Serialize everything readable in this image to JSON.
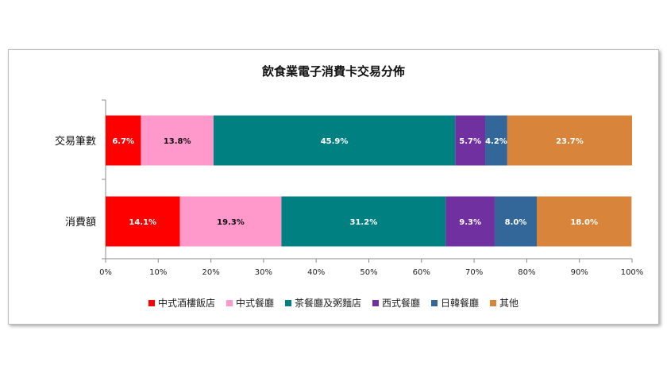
{
  "chart_data": {
    "type": "bar",
    "orientation": "horizontal",
    "stacked": true,
    "title": "飲食業電子消費卡交易分佈",
    "categories": [
      "交易筆數",
      "消費額"
    ],
    "series": [
      {
        "name": "中式酒樓飯店",
        "color": "#ff0000",
        "values": [
          6.7,
          14.1
        ],
        "labels": [
          "6.7%",
          "14.1%"
        ]
      },
      {
        "name": "中式餐廳",
        "color": "#ff99cc",
        "values": [
          13.8,
          19.3
        ],
        "labels": [
          "13.8%",
          "19.3%"
        ]
      },
      {
        "name": "茶餐廳及粥麵店",
        "color": "#008080",
        "values": [
          45.9,
          31.2
        ],
        "labels": [
          "45.9%",
          "31.2%"
        ]
      },
      {
        "name": "西式餐廳",
        "color": "#7030a0",
        "values": [
          5.7,
          9.3
        ],
        "labels": [
          "5.7%",
          "9.3%"
        ]
      },
      {
        "name": "日韓餐廳",
        "color": "#336699",
        "values": [
          4.2,
          8.0
        ],
        "labels": [
          "4.2%",
          "8.0%"
        ]
      },
      {
        "name": "其他",
        "color": "#d9843b",
        "values": [
          23.7,
          18.0
        ],
        "labels": [
          "23.7%",
          "18.0%"
        ]
      }
    ],
    "xlim": [
      0,
      100
    ],
    "xticks": [
      "0%",
      "10%",
      "20%",
      "30%",
      "40%",
      "50%",
      "60%",
      "70%",
      "80%",
      "90%",
      "100%"
    ],
    "legend_position": "bottom",
    "grid": false
  }
}
